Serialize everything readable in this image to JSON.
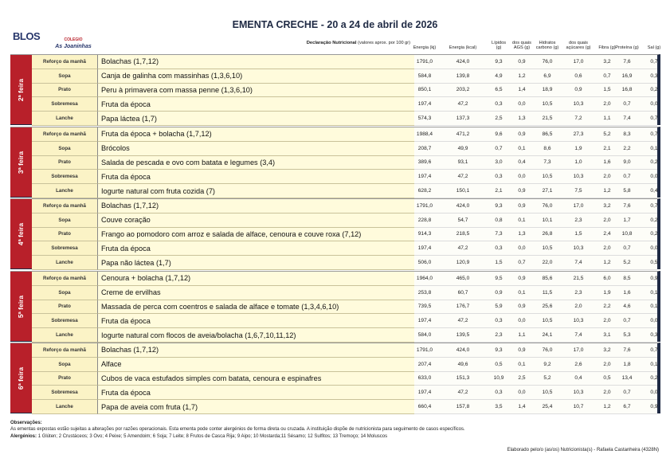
{
  "header": {
    "title": "EMENTA CRECHE - 20 a 24 de abril de 2026",
    "logo_left": "BLOS",
    "logo_right_top": "COLEGIO",
    "logo_right": "As Joaninhas",
    "declaration": "Declaração Nutricional",
    "declaration_note": "(valores aprox. por 100 gr)",
    "columns": [
      "Energia (kj)",
      "Energia (kcal)",
      "Lípidos (g)",
      "dos quais AGS (g)",
      "Hidratos carbono (g)",
      "dos quais açúcares (g)",
      "Fibra (g)",
      "Proteína (g)",
      "Sal (g)"
    ]
  },
  "days": [
    {
      "label": "2ª feira",
      "rows": [
        {
          "meal": "Reforço da manhã",
          "dish": "Bolachas (1,7,12)",
          "values": [
            "1791,0",
            "424,0",
            "9,3",
            "0,9",
            "76,0",
            "17,0",
            "3,2",
            "7,6",
            "0,7"
          ]
        },
        {
          "meal": "Sopa",
          "dish": "Canja de galinha com massinhas (1,3,6,10)",
          "values": [
            "584,8",
            "139,8",
            "4,9",
            "1,2",
            "6,9",
            "0,6",
            "0,7",
            "16,9",
            "0,3"
          ]
        },
        {
          "meal": "Prato",
          "dish": "Peru à primavera com massa penne (1,3,6,10)",
          "values": [
            "850,1",
            "203,2",
            "6,5",
            "1,4",
            "18,9",
            "0,9",
            "1,5",
            "16,8",
            "0,2"
          ]
        },
        {
          "meal": "Sobremesa",
          "dish": "Fruta da época",
          "values": [
            "197,4",
            "47,2",
            "0,3",
            "0,0",
            "10,5",
            "10,3",
            "2,0",
            "0,7",
            "0,0"
          ]
        },
        {
          "meal": "Lanche",
          "dish": "Papa láctea (1,7)",
          "values": [
            "574,3",
            "137,3",
            "2,5",
            "1,3",
            "21,5",
            "7,2",
            "1,1",
            "7,4",
            "0,7"
          ]
        }
      ]
    },
    {
      "label": "3ª feira",
      "rows": [
        {
          "meal": "Reforço da manhã",
          "dish": "Fruta da época + bolacha (1,7,12)",
          "values": [
            "1988,4",
            "471,2",
            "9,6",
            "0,9",
            "86,5",
            "27,3",
            "5,2",
            "8,3",
            "0,7"
          ]
        },
        {
          "meal": "Sopa",
          "dish": "Brócolos",
          "values": [
            "208,7",
            "49,9",
            "0,7",
            "0,1",
            "8,6",
            "1,9",
            "2,1",
            "2,2",
            "0,1"
          ]
        },
        {
          "meal": "Prato",
          "dish": "Salada de pescada e ovo com batata e legumes (3,4)",
          "values": [
            "389,6",
            "93,1",
            "3,0",
            "0,4",
            "7,3",
            "1,0",
            "1,6",
            "9,0",
            "0,2"
          ]
        },
        {
          "meal": "Sobremesa",
          "dish": "Fruta da época",
          "values": [
            "197,4",
            "47,2",
            "0,3",
            "0,0",
            "10,5",
            "10,3",
            "2,0",
            "0,7",
            "0,0"
          ]
        },
        {
          "meal": "Lanche",
          "dish": "Iogurte natural com fruta cozida (7)",
          "values": [
            "628,2",
            "150,1",
            "2,1",
            "0,9",
            "27,1",
            "7,5",
            "1,2",
            "5,8",
            "0,4"
          ]
        }
      ]
    },
    {
      "label": "4ª feira",
      "rows": [
        {
          "meal": "Reforço da manhã",
          "dish": "Bolachas (1,7,12)",
          "values": [
            "1791,0",
            "424,0",
            "9,3",
            "0,9",
            "76,0",
            "17,0",
            "3,2",
            "7,6",
            "0,7"
          ]
        },
        {
          "meal": "Sopa",
          "dish": "Couve coração",
          "values": [
            "228,8",
            "54,7",
            "0,8",
            "0,1",
            "10,1",
            "2,3",
            "2,0",
            "1,7",
            "0,2"
          ]
        },
        {
          "meal": "Prato",
          "dish": "Frango ao pomodoro com arroz e salada de alface, cenoura e couve roxa (7,12)",
          "values": [
            "914,3",
            "218,5",
            "7,3",
            "1,3",
            "26,8",
            "1,5",
            "2,4",
            "10,8",
            "0,2"
          ]
        },
        {
          "meal": "Sobremesa",
          "dish": "Fruta da época",
          "values": [
            "197,4",
            "47,2",
            "0,3",
            "0,0",
            "10,5",
            "10,3",
            "2,0",
            "0,7",
            "0,0"
          ]
        },
        {
          "meal": "Lanche",
          "dish": "Papa não láctea (1,7)",
          "values": [
            "506,0",
            "120,9",
            "1,5",
            "0,7",
            "22,0",
            "7,4",
            "1,2",
            "5,2",
            "0,5"
          ]
        }
      ]
    },
    {
      "label": "5ª feira",
      "rows": [
        {
          "meal": "Reforço da manhã",
          "dish": "Cenoura + bolacha (1,7,12)",
          "values": [
            "1964,0",
            "465,0",
            "9,5",
            "0,9",
            "85,6",
            "21,5",
            "6,0",
            "8,5",
            "0,9"
          ]
        },
        {
          "meal": "Sopa",
          "dish": "Creme de ervilhas",
          "values": [
            "253,8",
            "60,7",
            "0,9",
            "0,1",
            "11,5",
            "2,3",
            "1,9",
            "1,6",
            "0,1"
          ]
        },
        {
          "meal": "Prato",
          "dish": "Massada de perca com coentros e salada de alface e tomate (1,3,4,6,10)",
          "values": [
            "739,5",
            "176,7",
            "5,9",
            "0,9",
            "25,6",
            "2,0",
            "2,2",
            "4,6",
            "0,1"
          ]
        },
        {
          "meal": "Sobremesa",
          "dish": "Fruta da época",
          "values": [
            "197,4",
            "47,2",
            "0,3",
            "0,0",
            "10,5",
            "10,3",
            "2,0",
            "0,7",
            "0,0"
          ]
        },
        {
          "meal": "Lanche",
          "dish": "Iogurte natural com flocos de aveia/bolacha (1,6,7,10,11,12)",
          "values": [
            "584,0",
            "139,5",
            "2,3",
            "1,1",
            "24,1",
            "7,4",
            "3,1",
            "5,3",
            "0,3"
          ]
        }
      ]
    },
    {
      "label": "6ª feira",
      "rows": [
        {
          "meal": "Reforço da manhã",
          "dish": "Bolachas (1,7,12)",
          "values": [
            "1791,0",
            "424,0",
            "9,3",
            "0,9",
            "76,0",
            "17,0",
            "3,2",
            "7,6",
            "0,7"
          ]
        },
        {
          "meal": "Sopa",
          "dish": "Alface",
          "values": [
            "207,4",
            "49,6",
            "0,5",
            "0,1",
            "9,2",
            "2,6",
            "2,0",
            "1,8",
            "0,1"
          ]
        },
        {
          "meal": "Prato",
          "dish": "Cubos de vaca estufados simples com batata, cenoura e espinafres",
          "values": [
            "633,0",
            "151,3",
            "10,9",
            "2,5",
            "5,2",
            "0,4",
            "0,5",
            "13,4",
            "0,2"
          ]
        },
        {
          "meal": "Sobremesa",
          "dish": "Fruta da época",
          "values": [
            "197,4",
            "47,2",
            "0,3",
            "0,0",
            "10,5",
            "10,3",
            "2,0",
            "0,7",
            "0,0"
          ]
        },
        {
          "meal": "Lanche",
          "dish": "Papa de aveia com fruta (1,7)",
          "values": [
            "660,4",
            "157,8",
            "3,5",
            "1,4",
            "25,4",
            "10,7",
            "1,2",
            "6,7",
            "0,9"
          ]
        }
      ]
    }
  ],
  "footer": {
    "observations_title": "Observações:",
    "observations": "As ementas expostas estão sujeitas a alterações por razões operacionais. Esta ementa pode conter alergénios de forma direta ou cruzada. A instituição dispõe de nutricionista para seguimento de casos específicos.",
    "allergens_title": "Alergénios:",
    "allergens": "1 Glúten; 2 Crustáceos; 3 Ovo; 4 Peixe; 5 Amendoim; 6 Soja; 7 Leite; 8 Frutos de Casca Rija; 9 Aipo; 10 Mostarda;11 Sésamo; 12 Sulfitos; 13 Tremoço; 14 Moluscos",
    "signature": "Elaborado pelo/o (as/os) Nutricionista(s) - Rafaela Castanheira (4328N)"
  }
}
